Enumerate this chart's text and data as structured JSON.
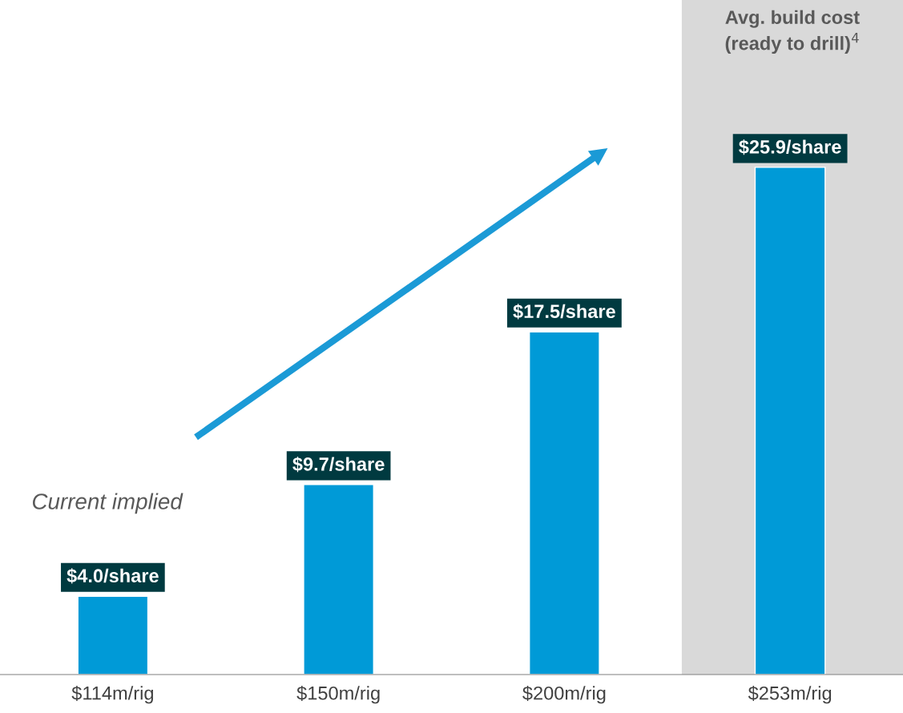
{
  "chart_data": {
    "type": "bar",
    "categories": [
      "$114m/rig",
      "$150m/rig",
      "$200m/rig",
      "$253m/rig"
    ],
    "values": [
      4.0,
      9.7,
      17.5,
      25.9
    ],
    "color": "#009ad7",
    "value_labels": [
      "$4.0/share",
      "$9.7/share",
      "$17.5/share",
      "$25.9/share"
    ],
    "bands": [
      {
        "axis": "x",
        "from": "$253m/rig",
        "to": "$253m/rig",
        "label": "Avg. build cost\n(ready to drill)$^{4}$",
        "color": "#d9d9d9"
      }
    ],
    "annotations": [
      "Current implied"
    ]
  }
}
